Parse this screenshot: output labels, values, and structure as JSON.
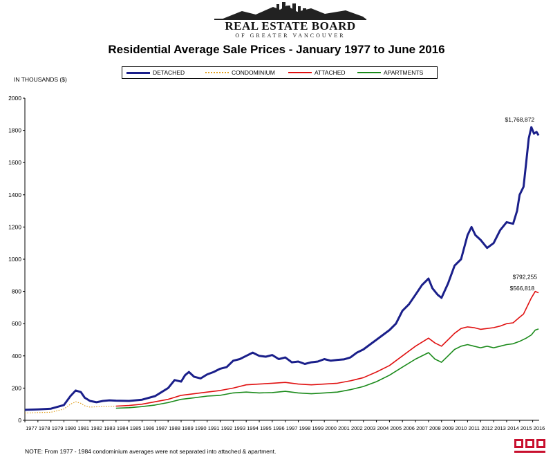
{
  "brand": {
    "name": "REAL ESTATE BOARD",
    "subtitle": "OF GREATER VANCOUVER"
  },
  "footnote": "NOTE:  From 1977 - 1984 condominium averages were not separated into attached & apartment.",
  "chart_data": {
    "type": "line",
    "title": "Residential Average Sale Prices  -  January 1977 to June 2016",
    "ylabel": "IN THOUSANDS ($)",
    "xlabel": "",
    "ylim": [
      0,
      2000
    ],
    "xlim": [
      1977.0,
      2016.5
    ],
    "y_ticks": [
      "0",
      "200",
      "400",
      "600",
      "800",
      "1000",
      "1200",
      "1400",
      "1600",
      "1800",
      "2000"
    ],
    "x_tick_labels": [
      "1977",
      "1978",
      "1979",
      "1980",
      "1981",
      "1982",
      "1983",
      "1984",
      "1985",
      "1986",
      "1987",
      "1988",
      "1989",
      "1990",
      "1991",
      "1992",
      "1993",
      "1994",
      "1995",
      "1996",
      "1997",
      "1998",
      "1999",
      "2000",
      "2001",
      "2002",
      "2003",
      "2004",
      "2005",
      "2006",
      "2007",
      "2008",
      "2009",
      "2010",
      "2011",
      "2012",
      "2013",
      "2014",
      "2015",
      "2016"
    ],
    "grid": false,
    "legend_position": "top",
    "annotations": [
      {
        "text": "$1,768,872",
        "series": "DETACHED"
      },
      {
        "text": "$792,255",
        "series": "ATTACHED"
      },
      {
        "text": "$566,818",
        "series": "APARTMENTS"
      }
    ],
    "series": [
      {
        "name": "DETACHED",
        "color": "#1a1f8a",
        "style": "solid-thick",
        "points": [
          [
            1977.0,
            65
          ],
          [
            1978.0,
            68
          ],
          [
            1979.0,
            72
          ],
          [
            1980.0,
            95
          ],
          [
            1980.5,
            150
          ],
          [
            1980.9,
            185
          ],
          [
            1981.3,
            175
          ],
          [
            1981.6,
            140
          ],
          [
            1982.0,
            120
          ],
          [
            1982.5,
            112
          ],
          [
            1983.0,
            120
          ],
          [
            1983.5,
            124
          ],
          [
            1984.0,
            122
          ],
          [
            1985.0,
            120
          ],
          [
            1986.0,
            128
          ],
          [
            1987.0,
            150
          ],
          [
            1987.5,
            175
          ],
          [
            1988.0,
            200
          ],
          [
            1988.5,
            250
          ],
          [
            1989.0,
            240
          ],
          [
            1989.3,
            280
          ],
          [
            1989.6,
            300
          ],
          [
            1990.0,
            270
          ],
          [
            1990.5,
            260
          ],
          [
            1991.0,
            285
          ],
          [
            1991.5,
            300
          ],
          [
            1992.0,
            320
          ],
          [
            1992.5,
            330
          ],
          [
            1993.0,
            370
          ],
          [
            1993.5,
            380
          ],
          [
            1994.0,
            400
          ],
          [
            1994.5,
            420
          ],
          [
            1995.0,
            400
          ],
          [
            1995.5,
            395
          ],
          [
            1996.0,
            405
          ],
          [
            1996.5,
            380
          ],
          [
            1997.0,
            390
          ],
          [
            1997.5,
            360
          ],
          [
            1998.0,
            365
          ],
          [
            1998.5,
            350
          ],
          [
            1999.0,
            360
          ],
          [
            1999.5,
            365
          ],
          [
            2000.0,
            380
          ],
          [
            2000.5,
            370
          ],
          [
            2001.0,
            375
          ],
          [
            2001.5,
            378
          ],
          [
            2002.0,
            390
          ],
          [
            2002.5,
            420
          ],
          [
            2003.0,
            440
          ],
          [
            2003.5,
            470
          ],
          [
            2004.0,
            500
          ],
          [
            2004.5,
            530
          ],
          [
            2005.0,
            560
          ],
          [
            2005.5,
            600
          ],
          [
            2006.0,
            680
          ],
          [
            2006.5,
            720
          ],
          [
            2007.0,
            780
          ],
          [
            2007.5,
            840
          ],
          [
            2008.0,
            880
          ],
          [
            2008.3,
            820
          ],
          [
            2008.7,
            780
          ],
          [
            2009.0,
            760
          ],
          [
            2009.5,
            850
          ],
          [
            2010.0,
            960
          ],
          [
            2010.5,
            1000
          ],
          [
            2011.0,
            1150
          ],
          [
            2011.3,
            1200
          ],
          [
            2011.6,
            1150
          ],
          [
            2012.0,
            1120
          ],
          [
            2012.5,
            1070
          ],
          [
            2013.0,
            1100
          ],
          [
            2013.5,
            1180
          ],
          [
            2014.0,
            1230
          ],
          [
            2014.5,
            1220
          ],
          [
            2014.8,
            1300
          ],
          [
            2015.0,
            1400
          ],
          [
            2015.3,
            1450
          ],
          [
            2015.5,
            1600
          ],
          [
            2015.7,
            1750
          ],
          [
            2015.9,
            1820
          ],
          [
            2016.1,
            1780
          ],
          [
            2016.3,
            1790
          ],
          [
            2016.45,
            1769
          ]
        ]
      },
      {
        "name": "CONDOMINIUM",
        "color": "#e0a020",
        "style": "dotted",
        "points": [
          [
            1977.0,
            45
          ],
          [
            1978.0,
            48
          ],
          [
            1979.0,
            50
          ],
          [
            1980.0,
            70
          ],
          [
            1980.5,
            100
          ],
          [
            1980.9,
            115
          ],
          [
            1981.3,
            105
          ],
          [
            1981.6,
            90
          ],
          [
            1982.0,
            82
          ],
          [
            1983.0,
            86
          ],
          [
            1984.0,
            88
          ]
        ]
      },
      {
        "name": "ATTACHED",
        "color": "#e01010",
        "style": "solid",
        "points": [
          [
            1984.0,
            88
          ],
          [
            1985.0,
            92
          ],
          [
            1986.0,
            100
          ],
          [
            1987.0,
            115
          ],
          [
            1988.0,
            130
          ],
          [
            1989.0,
            155
          ],
          [
            1990.0,
            165
          ],
          [
            1991.0,
            175
          ],
          [
            1992.0,
            185
          ],
          [
            1993.0,
            200
          ],
          [
            1994.0,
            220
          ],
          [
            1995.0,
            225
          ],
          [
            1996.0,
            230
          ],
          [
            1997.0,
            235
          ],
          [
            1998.0,
            225
          ],
          [
            1999.0,
            220
          ],
          [
            2000.0,
            225
          ],
          [
            2001.0,
            230
          ],
          [
            2002.0,
            245
          ],
          [
            2003.0,
            265
          ],
          [
            2004.0,
            300
          ],
          [
            2005.0,
            340
          ],
          [
            2006.0,
            400
          ],
          [
            2007.0,
            460
          ],
          [
            2008.0,
            510
          ],
          [
            2008.5,
            480
          ],
          [
            2009.0,
            460
          ],
          [
            2009.5,
            500
          ],
          [
            2010.0,
            540
          ],
          [
            2010.5,
            570
          ],
          [
            2011.0,
            580
          ],
          [
            2011.5,
            575
          ],
          [
            2012.0,
            565
          ],
          [
            2012.5,
            570
          ],
          [
            2013.0,
            575
          ],
          [
            2013.5,
            585
          ],
          [
            2014.0,
            600
          ],
          [
            2014.5,
            605
          ],
          [
            2015.0,
            640
          ],
          [
            2015.3,
            660
          ],
          [
            2015.6,
            710
          ],
          [
            2015.9,
            760
          ],
          [
            2016.2,
            800
          ],
          [
            2016.45,
            792
          ]
        ]
      },
      {
        "name": "APARTMENTS",
        "color": "#1a8a1a",
        "style": "solid",
        "points": [
          [
            1984.0,
            75
          ],
          [
            1985.0,
            78
          ],
          [
            1986.0,
            85
          ],
          [
            1987.0,
            95
          ],
          [
            1988.0,
            110
          ],
          [
            1989.0,
            130
          ],
          [
            1990.0,
            140
          ],
          [
            1991.0,
            150
          ],
          [
            1992.0,
            155
          ],
          [
            1993.0,
            170
          ],
          [
            1994.0,
            175
          ],
          [
            1995.0,
            170
          ],
          [
            1996.0,
            172
          ],
          [
            1997.0,
            180
          ],
          [
            1998.0,
            170
          ],
          [
            1999.0,
            165
          ],
          [
            2000.0,
            170
          ],
          [
            2001.0,
            175
          ],
          [
            2002.0,
            190
          ],
          [
            2003.0,
            210
          ],
          [
            2004.0,
            240
          ],
          [
            2005.0,
            280
          ],
          [
            2006.0,
            330
          ],
          [
            2007.0,
            380
          ],
          [
            2008.0,
            420
          ],
          [
            2008.5,
            380
          ],
          [
            2009.0,
            360
          ],
          [
            2009.5,
            400
          ],
          [
            2010.0,
            440
          ],
          [
            2010.5,
            460
          ],
          [
            2011.0,
            470
          ],
          [
            2011.5,
            460
          ],
          [
            2012.0,
            450
          ],
          [
            2012.5,
            460
          ],
          [
            2013.0,
            450
          ],
          [
            2013.5,
            460
          ],
          [
            2014.0,
            470
          ],
          [
            2014.5,
            475
          ],
          [
            2015.0,
            490
          ],
          [
            2015.5,
            510
          ],
          [
            2015.9,
            530
          ],
          [
            2016.2,
            560
          ],
          [
            2016.45,
            567
          ]
        ]
      }
    ]
  }
}
